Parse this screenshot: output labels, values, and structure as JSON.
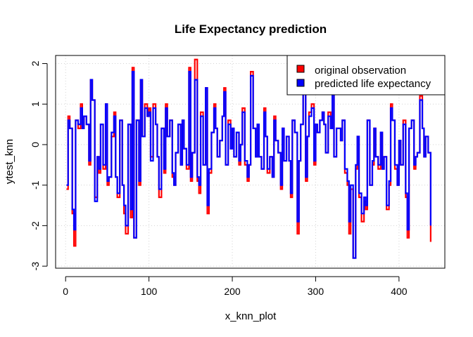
{
  "chart_data": {
    "type": "line",
    "title": "Life Expectancy prediction",
    "xlabel": "x_knn_plot",
    "ylabel": "ytest_knn",
    "xlim": [
      -12,
      455
    ],
    "ylim": [
      -3.05,
      2.2
    ],
    "x_ticks": [
      0,
      100,
      200,
      300,
      400
    ],
    "x_tick_labels": [
      "0",
      "100",
      "200",
      "300",
      "400"
    ],
    "y_ticks": [
      -3,
      -2,
      -1,
      0,
      1,
      2
    ],
    "y_tick_labels": [
      "-3",
      "-2",
      "-1",
      "0",
      "1",
      "2"
    ],
    "grid": true,
    "legend_position": "top-right",
    "n_points": 440,
    "series": [
      {
        "name": "original observation",
        "color": "#ff0000",
        "x": [
          1,
          3,
          5,
          8,
          10,
          12,
          15,
          18,
          20,
          22,
          25,
          28,
          30,
          32,
          35,
          38,
          40,
          42,
          45,
          48,
          50,
          52,
          55,
          58,
          60,
          62,
          65,
          68,
          70,
          72,
          75,
          78,
          80,
          82,
          85,
          88,
          90,
          92,
          95,
          98,
          100,
          102,
          105,
          108,
          110,
          112,
          115,
          118,
          120,
          122,
          125,
          128,
          130,
          132,
          135,
          138,
          140,
          142,
          145,
          148,
          150,
          152,
          155,
          158,
          160,
          162,
          165,
          168,
          170,
          172,
          175,
          178,
          180,
          182,
          185,
          188,
          190,
          192,
          195,
          198,
          200,
          202,
          205,
          208,
          210,
          212,
          215,
          218,
          220,
          222,
          225,
          228,
          230,
          232,
          235,
          238,
          240,
          242,
          245,
          248,
          250,
          252,
          255,
          258,
          260,
          262,
          265,
          268,
          270,
          272,
          275,
          278,
          280,
          282,
          285,
          288,
          290,
          292,
          295,
          298,
          300,
          302,
          305,
          308,
          310,
          312,
          315,
          318,
          320,
          322,
          325,
          328,
          330,
          332,
          335,
          338,
          340,
          342,
          345,
          348,
          350,
          352,
          355,
          358,
          360,
          362,
          365,
          368,
          370,
          372,
          375,
          378,
          380,
          382,
          385,
          388,
          390,
          392,
          395,
          398,
          400,
          402,
          405,
          408,
          410,
          412,
          415,
          418,
          420,
          422,
          425,
          428,
          430,
          432,
          435,
          438
        ],
        "values": [
          -1.1,
          0.7,
          0.4,
          -1.7,
          -2.5,
          0.6,
          0.4,
          1.0,
          0.4,
          0.7,
          0.5,
          -0.5,
          1.6,
          1.1,
          -1.3,
          -0.3,
          -0.7,
          0.5,
          -0.6,
          1.0,
          -1.0,
          -0.8,
          0.2,
          0.8,
          -0.8,
          -1.3,
          0.6,
          -1.0,
          -1.7,
          -2.2,
          0.5,
          -1.8,
          1.9,
          -2.3,
          0.6,
          -1.0,
          1.6,
          0.2,
          1.0,
          0.7,
          0.9,
          -0.3,
          1.0,
          0.5,
          -0.3,
          -1.3,
          0.4,
          -0.7,
          1.0,
          0.2,
          0.6,
          -0.8,
          -1.0,
          -0.2,
          0.5,
          -0.5,
          0.6,
          -0.1,
          -0.6,
          1.9,
          -0.9,
          -0.2,
          2.1,
          -0.9,
          -1.2,
          0.8,
          -0.5,
          1.4,
          -1.7,
          -0.7,
          0.3,
          1.0,
          0.4,
          -0.3,
          0.1,
          0.7,
          1.4,
          -0.5,
          0.6,
          -0.1,
          0.4,
          -0.3,
          0.3,
          -0.5,
          0.0,
          0.9,
          -0.5,
          -0.9,
          -0.5,
          1.8,
          0.4,
          -0.3,
          0.5,
          -0.3,
          -0.6,
          0.9,
          0.2,
          -0.7,
          -0.3,
          -0.8,
          0.7,
          0.1,
          -0.2,
          -1.1,
          0.4,
          -0.4,
          0.2,
          -0.4,
          -1.3,
          0.6,
          0.3,
          -2.2,
          -0.4,
          0.5,
          1.4,
          -0.9,
          0.2,
          0.8,
          1.0,
          -0.5,
          0.5,
          0.3,
          0.6,
          0.8,
          0.5,
          -0.2,
          0.8,
          0.4,
          1.3,
          -0.3,
          0.4,
          0.4,
          0.1,
          0.6,
          -0.7,
          -1.0,
          -2.2,
          -1.1,
          -2.8,
          -0.6,
          0.2,
          -1.3,
          -1.9,
          -1.4,
          -1.6,
          0.6,
          -1.0,
          -0.5,
          0.4,
          -0.3,
          -0.6,
          0.3,
          -0.6,
          -0.3,
          -1.6,
          -1.0,
          1.0,
          0.6,
          -0.6,
          -1.0,
          0.1,
          -0.5,
          0.6,
          -1.3,
          -2.3,
          0.4,
          0.6,
          -0.6,
          -0.3,
          -0.2,
          1.2,
          0.4,
          -0.3,
          0.2,
          -0.2,
          -2.4
        ]
      },
      {
        "name": "predicted life expectancy",
        "color": "#0000ff",
        "x": [
          1,
          3,
          5,
          8,
          10,
          12,
          15,
          18,
          20,
          22,
          25,
          28,
          30,
          32,
          35,
          38,
          40,
          42,
          45,
          48,
          50,
          52,
          55,
          58,
          60,
          62,
          65,
          68,
          70,
          72,
          75,
          78,
          80,
          82,
          85,
          88,
          90,
          92,
          95,
          98,
          100,
          102,
          105,
          108,
          110,
          112,
          115,
          118,
          120,
          122,
          125,
          128,
          130,
          132,
          135,
          138,
          140,
          142,
          145,
          148,
          150,
          152,
          155,
          158,
          160,
          162,
          165,
          168,
          170,
          172,
          175,
          178,
          180,
          182,
          185,
          188,
          190,
          192,
          195,
          198,
          200,
          202,
          205,
          208,
          210,
          212,
          215,
          218,
          220,
          222,
          225,
          228,
          230,
          232,
          235,
          238,
          240,
          242,
          245,
          248,
          250,
          252,
          255,
          258,
          260,
          262,
          265,
          268,
          270,
          272,
          275,
          278,
          280,
          282,
          285,
          288,
          290,
          292,
          295,
          298,
          300,
          302,
          305,
          308,
          310,
          312,
          315,
          318,
          320,
          322,
          325,
          328,
          330,
          332,
          335,
          338,
          340,
          342,
          345,
          348,
          350,
          352,
          355,
          358,
          360,
          362,
          365,
          368,
          370,
          372,
          375,
          378,
          380,
          382,
          385,
          388,
          390,
          392,
          395,
          398,
          400,
          402,
          405,
          408,
          410,
          412,
          415,
          418,
          420,
          422,
          425,
          428,
          430,
          432,
          435,
          438
        ],
        "values": [
          -1.0,
          0.6,
          0.4,
          -1.6,
          -2.1,
          0.6,
          0.5,
          0.9,
          0.4,
          0.7,
          0.5,
          -0.4,
          1.6,
          1.1,
          -1.4,
          -0.3,
          -0.6,
          0.5,
          -0.5,
          1.0,
          -0.9,
          -0.8,
          0.3,
          0.7,
          -0.8,
          -1.2,
          0.6,
          -1.0,
          -1.5,
          -2.0,
          0.5,
          -1.6,
          1.8,
          -2.3,
          0.6,
          -0.9,
          1.6,
          0.2,
          0.9,
          0.7,
          0.8,
          -0.4,
          0.9,
          0.5,
          -0.3,
          -1.1,
          0.4,
          -0.6,
          0.9,
          0.2,
          0.6,
          -0.7,
          -1.0,
          -0.2,
          0.5,
          -0.5,
          0.6,
          -0.1,
          -0.5,
          1.8,
          -0.8,
          -0.2,
          1.6,
          -0.8,
          -1.0,
          0.7,
          -0.5,
          1.4,
          -1.5,
          -0.6,
          0.3,
          0.9,
          0.4,
          -0.3,
          0.1,
          0.7,
          1.3,
          -0.5,
          0.5,
          -0.1,
          0.4,
          -0.3,
          0.3,
          -0.4,
          0.0,
          0.8,
          -0.4,
          -0.8,
          -0.5,
          1.7,
          0.4,
          -0.3,
          0.5,
          -0.3,
          -0.6,
          0.8,
          0.2,
          -0.6,
          -0.3,
          -0.8,
          0.6,
          0.1,
          -0.2,
          -1.0,
          0.4,
          -0.4,
          0.2,
          -0.4,
          -1.2,
          0.6,
          0.3,
          -1.9,
          -0.4,
          0.5,
          1.4,
          -0.8,
          0.2,
          0.7,
          0.9,
          -0.4,
          0.5,
          0.3,
          0.6,
          0.8,
          0.5,
          -0.2,
          0.7,
          0.4,
          1.3,
          -0.3,
          0.4,
          0.4,
          0.1,
          0.6,
          -0.6,
          -0.9,
          -1.9,
          -1.0,
          -2.8,
          -0.5,
          0.2,
          -1.2,
          -1.7,
          -1.3,
          -1.5,
          0.6,
          -1.0,
          -0.4,
          0.4,
          -0.3,
          -0.5,
          0.3,
          -0.6,
          -0.3,
          -1.5,
          -0.9,
          0.9,
          0.6,
          -0.5,
          -1.0,
          0.1,
          -0.5,
          0.5,
          -1.2,
          -2.1,
          0.4,
          0.6,
          -0.5,
          -0.3,
          -0.2,
          1.1,
          0.4,
          -0.3,
          0.2,
          -0.2,
          -2.0
        ]
      }
    ]
  }
}
